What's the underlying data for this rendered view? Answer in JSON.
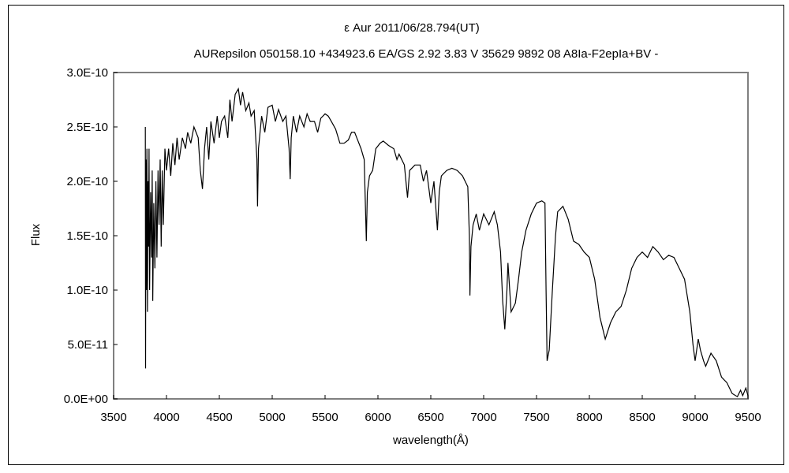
{
  "chart_data": {
    "type": "line",
    "title": "ε  Aur   2011/06/28.794(UT)",
    "subtitle": "AURepsilon 050158.10 +434923.6 EA/GS 2.92 3.83 V 35629 9892 08 A8Ia-F2epIa+BV -",
    "xlabel": "wavelength(Å)",
    "ylabel": "Flux",
    "xlim": [
      3500,
      9500
    ],
    "ylim": [
      0,
      3e-10
    ],
    "x_ticks": [
      "3500",
      "4000",
      "4500",
      "5000",
      "5500",
      "6000",
      "6500",
      "7000",
      "7500",
      "8000",
      "8500",
      "9000",
      "9500"
    ],
    "y_ticks": [
      "0.0E+00",
      "5.0E-11",
      "1.0E-10",
      "1.5E-10",
      "2.0E-10",
      "2.5E-10",
      "3.0E-10"
    ],
    "grid": false,
    "legend": "none",
    "line_color": "#000000",
    "series": [
      {
        "points": [
          [
            3800,
            2.5e-10
          ],
          [
            3802,
            2.8e-11
          ],
          [
            3805,
            2.2e-10
          ],
          [
            3810,
            1e-10
          ],
          [
            3815,
            2.3e-10
          ],
          [
            3820,
            8e-11
          ],
          [
            3825,
            2e-10
          ],
          [
            3830,
            1.4e-10
          ],
          [
            3835,
            2.3e-10
          ],
          [
            3840,
            1e-10
          ],
          [
            3850,
            1.9e-10
          ],
          [
            3860,
            1.3e-10
          ],
          [
            3865,
            2.1e-10
          ],
          [
            3870,
            9e-11
          ],
          [
            3880,
            1.8e-10
          ],
          [
            3890,
            1.2e-10
          ],
          [
            3900,
            2e-10
          ],
          [
            3910,
            1.3e-10
          ],
          [
            3920,
            2.1e-10
          ],
          [
            3930,
            1.6e-10
          ],
          [
            3940,
            2.2e-10
          ],
          [
            3950,
            1.4e-10
          ],
          [
            3960,
            2.1e-10
          ],
          [
            3970,
            1.6e-10
          ],
          [
            3985,
            2.3e-10
          ],
          [
            4000,
            2.1e-10
          ],
          [
            4020,
            2.3e-10
          ],
          [
            4040,
            2.05e-10
          ],
          [
            4060,
            2.35e-10
          ],
          [
            4080,
            2.15e-10
          ],
          [
            4100,
            2.4e-10
          ],
          [
            4120,
            2.2e-10
          ],
          [
            4150,
            2.4e-10
          ],
          [
            4180,
            2.3e-10
          ],
          [
            4200,
            2.45e-10
          ],
          [
            4230,
            2.35e-10
          ],
          [
            4260,
            2.5e-10
          ],
          [
            4300,
            2.4e-10
          ],
          [
            4320,
            2.1e-10
          ],
          [
            4340,
            1.93e-10
          ],
          [
            4360,
            2.3e-10
          ],
          [
            4380,
            2.5e-10
          ],
          [
            4400,
            2.2e-10
          ],
          [
            4420,
            2.55e-10
          ],
          [
            4450,
            2.35e-10
          ],
          [
            4480,
            2.6e-10
          ],
          [
            4500,
            2.4e-10
          ],
          [
            4520,
            2.55e-10
          ],
          [
            4550,
            2.6e-10
          ],
          [
            4580,
            2.4e-10
          ],
          [
            4600,
            2.75e-10
          ],
          [
            4620,
            2.55e-10
          ],
          [
            4650,
            2.8e-10
          ],
          [
            4680,
            2.85e-10
          ],
          [
            4700,
            2.7e-10
          ],
          [
            4720,
            2.82e-10
          ],
          [
            4750,
            2.65e-10
          ],
          [
            4780,
            2.72e-10
          ],
          [
            4800,
            2.6e-10
          ],
          [
            4830,
            2.65e-10
          ],
          [
            4855,
            2.2e-10
          ],
          [
            4861,
            1.77e-10
          ],
          [
            4870,
            2.3e-10
          ],
          [
            4900,
            2.6e-10
          ],
          [
            4930,
            2.45e-10
          ],
          [
            4960,
            2.68e-10
          ],
          [
            5000,
            2.7e-10
          ],
          [
            5030,
            2.55e-10
          ],
          [
            5060,
            2.66e-10
          ],
          [
            5100,
            2.55e-10
          ],
          [
            5130,
            2.6e-10
          ],
          [
            5160,
            2.3e-10
          ],
          [
            5170,
            2.02e-10
          ],
          [
            5180,
            2.4e-10
          ],
          [
            5200,
            2.6e-10
          ],
          [
            5230,
            2.45e-10
          ],
          [
            5260,
            2.6e-10
          ],
          [
            5300,
            2.5e-10
          ],
          [
            5330,
            2.62e-10
          ],
          [
            5360,
            2.55e-10
          ],
          [
            5400,
            2.55e-10
          ],
          [
            5430,
            2.45e-10
          ],
          [
            5460,
            2.58e-10
          ],
          [
            5500,
            2.62e-10
          ],
          [
            5530,
            2.6e-10
          ],
          [
            5560,
            2.55e-10
          ],
          [
            5600,
            2.48e-10
          ],
          [
            5640,
            2.35e-10
          ],
          [
            5680,
            2.35e-10
          ],
          [
            5720,
            2.38e-10
          ],
          [
            5750,
            2.45e-10
          ],
          [
            5780,
            2.45e-10
          ],
          [
            5800,
            2.4e-10
          ],
          [
            5840,
            2.3e-10
          ],
          [
            5870,
            2.2e-10
          ],
          [
            5890,
            1.45e-10
          ],
          [
            5900,
            1.9e-10
          ],
          [
            5920,
            2.05e-10
          ],
          [
            5950,
            2.1e-10
          ],
          [
            5980,
            2.3e-10
          ],
          [
            6020,
            2.35e-10
          ],
          [
            6050,
            2.37e-10
          ],
          [
            6100,
            2.33e-10
          ],
          [
            6150,
            2.3e-10
          ],
          [
            6180,
            2.2e-10
          ],
          [
            6200,
            2.25e-10
          ],
          [
            6250,
            2.15e-10
          ],
          [
            6280,
            1.85e-10
          ],
          [
            6300,
            2.1e-10
          ],
          [
            6350,
            2.15e-10
          ],
          [
            6400,
            2.15e-10
          ],
          [
            6430,
            2e-10
          ],
          [
            6460,
            2.1e-10
          ],
          [
            6500,
            1.8e-10
          ],
          [
            6530,
            2e-10
          ],
          [
            6563,
            1.55e-10
          ],
          [
            6580,
            1.9e-10
          ],
          [
            6600,
            2.05e-10
          ],
          [
            6650,
            2.1e-10
          ],
          [
            6700,
            2.12e-10
          ],
          [
            6750,
            2.1e-10
          ],
          [
            6800,
            2.05e-10
          ],
          [
            6850,
            1.95e-10
          ],
          [
            6865,
            1.5e-10
          ],
          [
            6870,
            9.5e-11
          ],
          [
            6880,
            1.4e-10
          ],
          [
            6900,
            1.6e-10
          ],
          [
            6930,
            1.7e-10
          ],
          [
            6960,
            1.55e-10
          ],
          [
            7000,
            1.7e-10
          ],
          [
            7050,
            1.6e-10
          ],
          [
            7100,
            1.72e-10
          ],
          [
            7130,
            1.6e-10
          ],
          [
            7160,
            1.35e-10
          ],
          [
            7180,
            9e-11
          ],
          [
            7200,
            6.4e-11
          ],
          [
            7220,
            1e-10
          ],
          [
            7230,
            1.25e-10
          ],
          [
            7260,
            8e-11
          ],
          [
            7300,
            8.8e-11
          ],
          [
            7330,
            1.1e-10
          ],
          [
            7360,
            1.35e-10
          ],
          [
            7400,
            1.55e-10
          ],
          [
            7450,
            1.7e-10
          ],
          [
            7500,
            1.8e-10
          ],
          [
            7550,
            1.82e-10
          ],
          [
            7580,
            1.8e-10
          ],
          [
            7590,
            1e-10
          ],
          [
            7600,
            3.5e-11
          ],
          [
            7620,
            4.5e-11
          ],
          [
            7650,
            1e-10
          ],
          [
            7680,
            1.5e-10
          ],
          [
            7700,
            1.72e-10
          ],
          [
            7750,
            1.77e-10
          ],
          [
            7800,
            1.65e-10
          ],
          [
            7850,
            1.45e-10
          ],
          [
            7900,
            1.42e-10
          ],
          [
            7950,
            1.35e-10
          ],
          [
            8000,
            1.3e-10
          ],
          [
            8050,
            1.1e-10
          ],
          [
            8100,
            7.5e-11
          ],
          [
            8150,
            5.5e-11
          ],
          [
            8200,
            7e-11
          ],
          [
            8250,
            8e-11
          ],
          [
            8300,
            8.5e-11
          ],
          [
            8350,
            1e-10
          ],
          [
            8400,
            1.2e-10
          ],
          [
            8450,
            1.3e-10
          ],
          [
            8500,
            1.35e-10
          ],
          [
            8550,
            1.3e-10
          ],
          [
            8600,
            1.4e-10
          ],
          [
            8650,
            1.35e-10
          ],
          [
            8700,
            1.28e-10
          ],
          [
            8750,
            1.32e-10
          ],
          [
            8800,
            1.3e-10
          ],
          [
            8850,
            1.2e-10
          ],
          [
            8900,
            1.1e-10
          ],
          [
            8950,
            8e-11
          ],
          [
            8980,
            5e-11
          ],
          [
            9000,
            3.5e-11
          ],
          [
            9030,
            5.5e-11
          ],
          [
            9050,
            4.5e-11
          ],
          [
            9080,
            3.5e-11
          ],
          [
            9100,
            3e-11
          ],
          [
            9150,
            4.2e-11
          ],
          [
            9200,
            3.5e-11
          ],
          [
            9250,
            2e-11
          ],
          [
            9300,
            1.5e-11
          ],
          [
            9350,
            5e-12
          ],
          [
            9400,
            2e-12
          ],
          [
            9430,
            8e-12
          ],
          [
            9450,
            3e-12
          ],
          [
            9480,
            1e-11
          ],
          [
            9500,
            3e-12
          ]
        ]
      }
    ]
  }
}
